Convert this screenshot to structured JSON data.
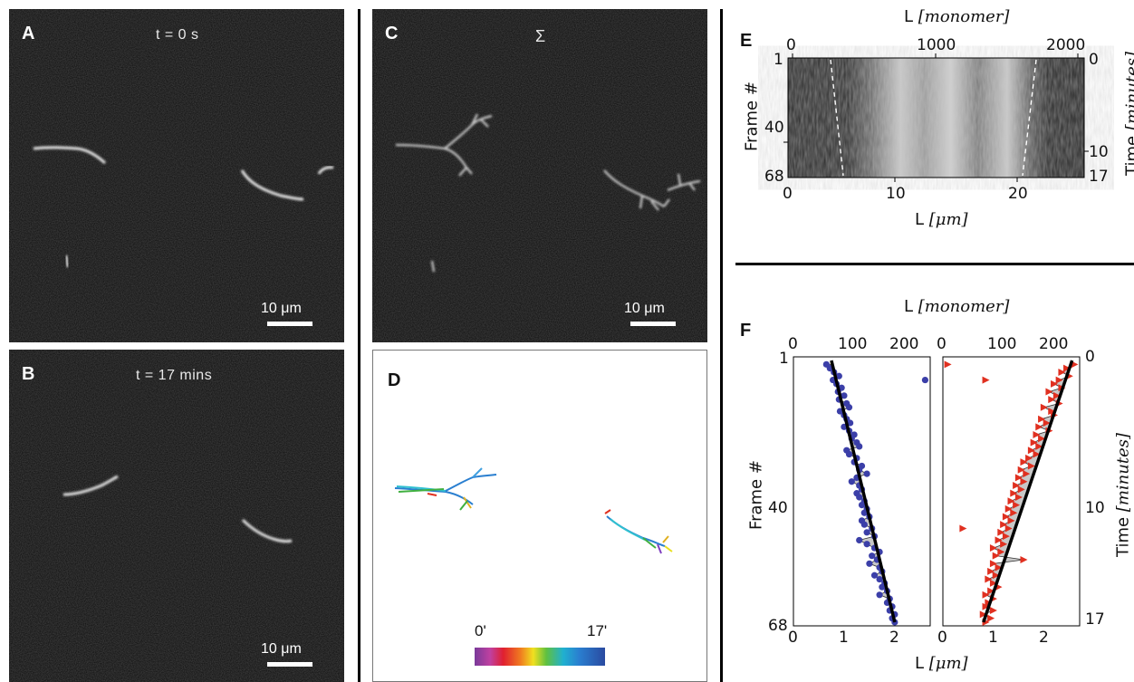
{
  "panels": {
    "A": {
      "label": "A",
      "time": "t = 0 s",
      "scale": "10 μm"
    },
    "B": {
      "label": "B",
      "time": "t = 17 mins",
      "scale": "10 μm"
    },
    "C": {
      "label": "C",
      "time": "Σ",
      "scale": "10 μm"
    },
    "D": {
      "label": "D",
      "colorbar_start": "0'",
      "colorbar_end": "17'"
    },
    "E": {
      "label": "E",
      "top_axis_prefix": "L ",
      "top_axis_unit": "[monomer]",
      "top_ticks": [
        "0",
        "1000",
        "2000"
      ],
      "left_axis": "Frame #",
      "left_ticks": [
        "1",
        "40",
        "68"
      ],
      "right_axis_prefix": "Time ",
      "right_axis_unit": "[minutes]",
      "right_ticks": [
        "0",
        "10",
        "17"
      ],
      "bottom_axis_prefix": "L ",
      "bottom_axis_unit": "[μm]",
      "bottom_ticks": [
        "0",
        "10",
        "20"
      ]
    },
    "F": {
      "label": "F",
      "top_axis_prefix": "L ",
      "top_axis_unit": "[monomer]",
      "top_ticks_left": [
        "0",
        "100",
        "200"
      ],
      "top_ticks_right": [
        "0",
        "100",
        "200"
      ],
      "left_axis": "Frame #",
      "left_ticks": [
        "1",
        "40",
        "68"
      ],
      "right_axis_prefix": "Time ",
      "right_axis_unit": "[minutes]",
      "right_ticks": [
        "0",
        "10",
        "17"
      ],
      "bottom_axis_prefix": "L ",
      "bottom_axis_unit": "[μm]",
      "bottom_ticks_left": [
        "0",
        "1",
        "2"
      ],
      "bottom_ticks_right": [
        "0",
        "1",
        "2"
      ]
    }
  },
  "chart_data": [
    {
      "type": "scatter",
      "panel": "F-left",
      "xlim": [
        0,
        2.7
      ],
      "ylim": [
        68,
        1
      ],
      "series": [
        {
          "color": "#3b3fa8",
          "marker": "circle",
          "points": [
            [
              0.65,
              2
            ],
            [
              0.72,
              3
            ],
            [
              0.8,
              4
            ],
            [
              0.9,
              5
            ],
            [
              0.78,
              6
            ],
            [
              0.85,
              7
            ],
            [
              0.95,
              8
            ],
            [
              0.88,
              9
            ],
            [
              1.0,
              10
            ],
            [
              0.9,
              11
            ],
            [
              1.05,
              12
            ],
            [
              1.1,
              13
            ],
            [
              0.92,
              14
            ],
            [
              1.0,
              15
            ],
            [
              1.05,
              16
            ],
            [
              1.12,
              17
            ],
            [
              1.0,
              18
            ],
            [
              1.1,
              19
            ],
            [
              1.2,
              20
            ],
            [
              1.15,
              21
            ],
            [
              1.25,
              22
            ],
            [
              1.3,
              23
            ],
            [
              1.05,
              24
            ],
            [
              1.1,
              25
            ],
            [
              1.25,
              26
            ],
            [
              1.2,
              27
            ],
            [
              1.35,
              28
            ],
            [
              1.3,
              29
            ],
            [
              1.45,
              30
            ],
            [
              1.25,
              31
            ],
            [
              1.15,
              32
            ],
            [
              1.3,
              33
            ],
            [
              1.35,
              34
            ],
            [
              1.25,
              35
            ],
            [
              1.3,
              36
            ],
            [
              1.4,
              37
            ],
            [
              1.35,
              38
            ],
            [
              1.45,
              39
            ],
            [
              1.4,
              40
            ],
            [
              1.5,
              41
            ],
            [
              1.35,
              42
            ],
            [
              1.4,
              43
            ],
            [
              1.55,
              44
            ],
            [
              1.45,
              45
            ],
            [
              1.6,
              46
            ],
            [
              1.3,
              47
            ],
            [
              1.45,
              48
            ],
            [
              1.6,
              49
            ],
            [
              1.7,
              50
            ],
            [
              1.55,
              51
            ],
            [
              1.65,
              52
            ],
            [
              1.5,
              53
            ],
            [
              1.7,
              54
            ],
            [
              1.75,
              55
            ],
            [
              1.6,
              56
            ],
            [
              1.7,
              57
            ],
            [
              1.8,
              58
            ],
            [
              1.75,
              59
            ],
            [
              1.85,
              60
            ],
            [
              1.7,
              61
            ],
            [
              1.9,
              62
            ],
            [
              1.85,
              63
            ],
            [
              1.95,
              64
            ],
            [
              1.9,
              65
            ],
            [
              2.0,
              66
            ],
            [
              1.95,
              67
            ],
            [
              2.0,
              68
            ],
            [
              2.6,
              6
            ]
          ],
          "fit": [
            [
              0.75,
              1
            ],
            [
              2.0,
              68
            ]
          ]
        }
      ]
    },
    {
      "type": "scatter",
      "panel": "F-right",
      "xlim": [
        0,
        2.7
      ],
      "ylim": [
        68,
        1
      ],
      "series": [
        {
          "color": "#e03020",
          "marker": "triangle",
          "points": [
            [
              2.6,
              2
            ],
            [
              2.45,
              3
            ],
            [
              2.35,
              4
            ],
            [
              2.5,
              5
            ],
            [
              2.3,
              6
            ],
            [
              2.2,
              7
            ],
            [
              2.35,
              8
            ],
            [
              2.1,
              9
            ],
            [
              2.25,
              10
            ],
            [
              2.15,
              11
            ],
            [
              2.3,
              12
            ],
            [
              2.0,
              13
            ],
            [
              2.15,
              14
            ],
            [
              2.2,
              15
            ],
            [
              1.95,
              16
            ],
            [
              2.05,
              17
            ],
            [
              1.9,
              18
            ],
            [
              2.1,
              19
            ],
            [
              1.85,
              20
            ],
            [
              1.95,
              21
            ],
            [
              1.8,
              22
            ],
            [
              1.9,
              23
            ],
            [
              1.75,
              24
            ],
            [
              1.85,
              25
            ],
            [
              1.7,
              26
            ],
            [
              1.6,
              27
            ],
            [
              1.75,
              28
            ],
            [
              1.55,
              29
            ],
            [
              1.65,
              30
            ],
            [
              1.5,
              31
            ],
            [
              1.6,
              32
            ],
            [
              1.45,
              33
            ],
            [
              1.55,
              34
            ],
            [
              1.4,
              35
            ],
            [
              1.5,
              36
            ],
            [
              1.35,
              37
            ],
            [
              1.45,
              38
            ],
            [
              1.3,
              39
            ],
            [
              1.4,
              40
            ],
            [
              1.25,
              41
            ],
            [
              1.35,
              42
            ],
            [
              1.2,
              43
            ],
            [
              1.3,
              44
            ],
            [
              1.15,
              45
            ],
            [
              1.25,
              46
            ],
            [
              1.1,
              47
            ],
            [
              1.2,
              48
            ],
            [
              1.0,
              49
            ],
            [
              1.15,
              50
            ],
            [
              1.05,
              51
            ],
            [
              1.6,
              52
            ],
            [
              1.0,
              53
            ],
            [
              1.1,
              54
            ],
            [
              0.95,
              55
            ],
            [
              1.05,
              56
            ],
            [
              0.9,
              57
            ],
            [
              1.0,
              58
            ],
            [
              1.1,
              59
            ],
            [
              0.95,
              60
            ],
            [
              0.85,
              61
            ],
            [
              1.0,
              62
            ],
            [
              0.9,
              63
            ],
            [
              0.85,
              64
            ],
            [
              1.0,
              65
            ],
            [
              0.8,
              66
            ],
            [
              0.95,
              67
            ],
            [
              0.85,
              68
            ],
            [
              0.1,
              2
            ],
            [
              0.85,
              6
            ],
            [
              0.4,
              44
            ]
          ],
          "fit": [
            [
              2.55,
              1
            ],
            [
              0.8,
              68
            ]
          ]
        }
      ]
    }
  ]
}
